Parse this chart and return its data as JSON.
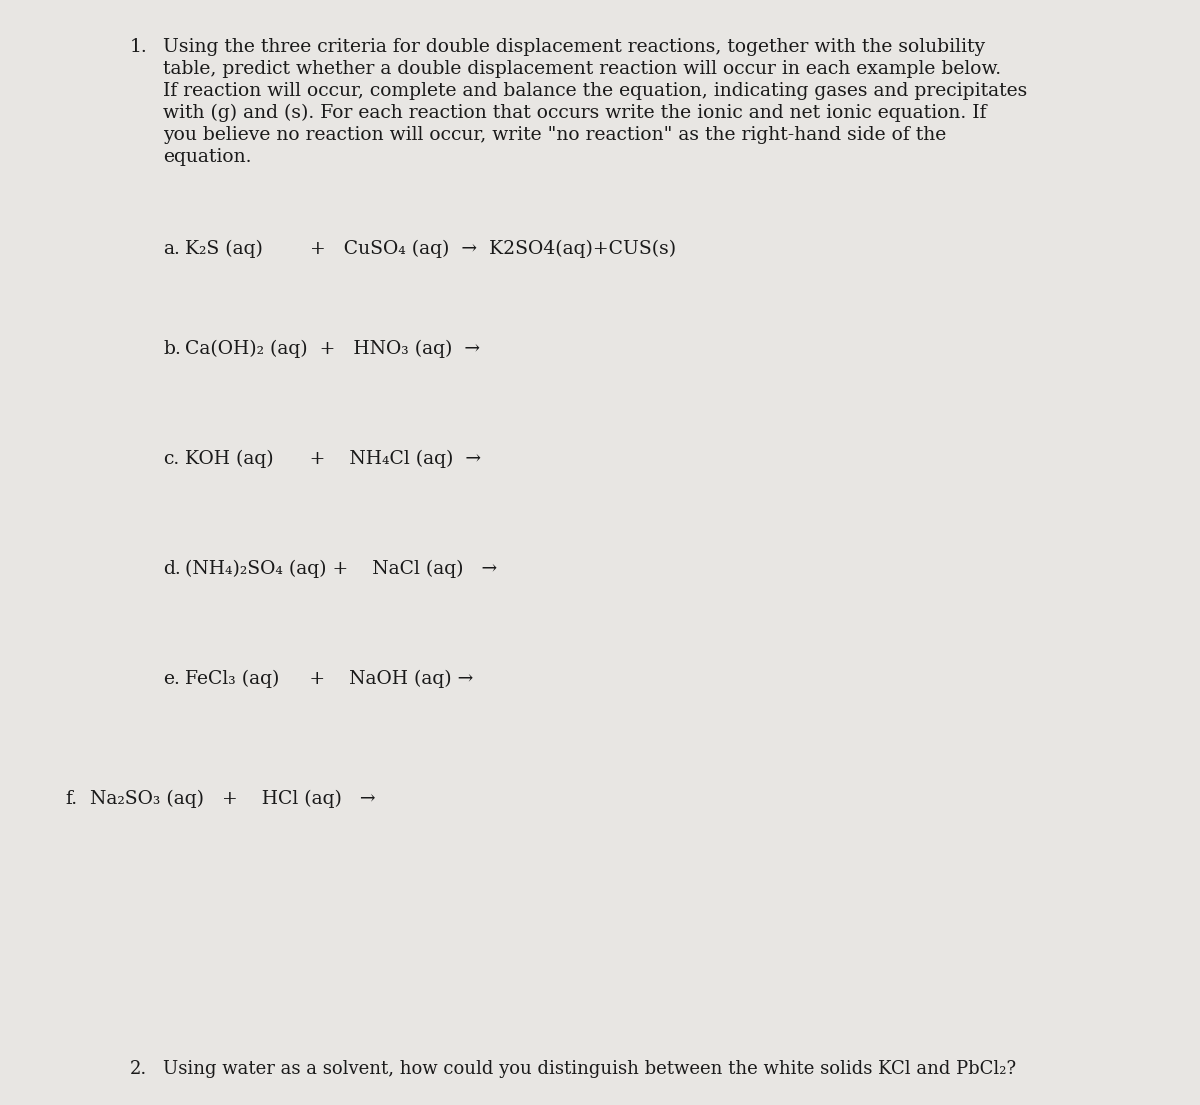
{
  "background_color": "#e8e6e3",
  "text_color": "#1a1a1a",
  "title_number": "1.",
  "title_lines": [
    "Using the three criteria for double displacement reactions, together with the solubility",
    "table, predict whether a double displacement reaction will occur in each example below.",
    "If reaction will occur, complete and balance the equation, indicating gases and precipitates",
    "with (g) and (s). For each reaction that occurs write the ionic and net ionic equation. If",
    "you believe no reaction will occur, write \"no reaction\" as the right-hand side of the",
    "equation."
  ],
  "reaction_a_label": "a.",
  "reaction_a_r1": "K₂S (aq)",
  "reaction_a_r2": "+   CuSO₄ (aq)  →  K2SO4(aq)+CUS(s)",
  "reaction_b_label": "b.",
  "reaction_b_r1": "Ca(OH)₂ (aq)  +   HNO₃ (aq)  →",
  "reaction_c_label": "c.",
  "reaction_c_r1": "KOH (aq)      +    NH₄Cl (aq)  →",
  "reaction_d_label": "d.",
  "reaction_d_r1": "(NH₄)₂SO₄ (aq) +    NaCl (aq)   →",
  "reaction_e_label": "e.",
  "reaction_e_r1": "FeCl₃ (aq)     +    NaOH (aq) →",
  "reaction_f_label": "f.",
  "reaction_f_r1": "Na₂SO₃ (aq)   +    HCl (aq)   →",
  "q2_number": "2.",
  "q2_text": "Using water as a solvent, how could you distinguish between the white solids KCl and PbCl₂?"
}
